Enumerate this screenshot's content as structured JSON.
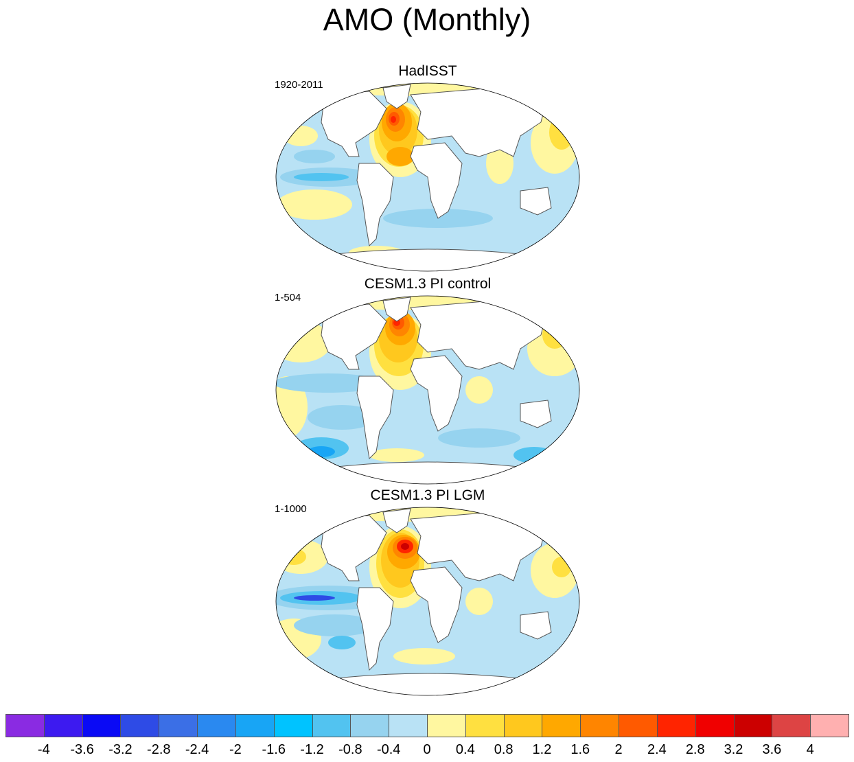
{
  "title": "AMO (Monthly)",
  "panels": [
    {
      "title": "HadISST",
      "period": "1920-2011"
    },
    {
      "title": "CESM1.3 PI control",
      "period": "1-504"
    },
    {
      "title": "CESM1.3 PI LGM",
      "period": "1-1000"
    }
  ],
  "colorbar": {
    "colors": [
      "#8a2be2",
      "#3d1af0",
      "#0a0af5",
      "#2e4be6",
      "#3b6fe6",
      "#2a89f0",
      "#18a5f5",
      "#00c3ff",
      "#52c3f0",
      "#96d3ef",
      "#b9e2f5",
      "#fff7a0",
      "#ffe040",
      "#ffc81e",
      "#ffa800",
      "#ff8500",
      "#ff5a00",
      "#ff2400",
      "#f00000",
      "#cc0000",
      "#dd4444",
      "#ffb0b0"
    ],
    "tick_labels": [
      "-4",
      "-3.6",
      "-3.2",
      "-2.8",
      "-2.4",
      "-2",
      "-1.6",
      "-1.2",
      "-0.8",
      "-0.4",
      "0",
      "0.4",
      "0.8",
      "1.2",
      "1.6",
      "2",
      "2.4",
      "2.8",
      "3.2",
      "3.6",
      "4"
    ]
  }
}
